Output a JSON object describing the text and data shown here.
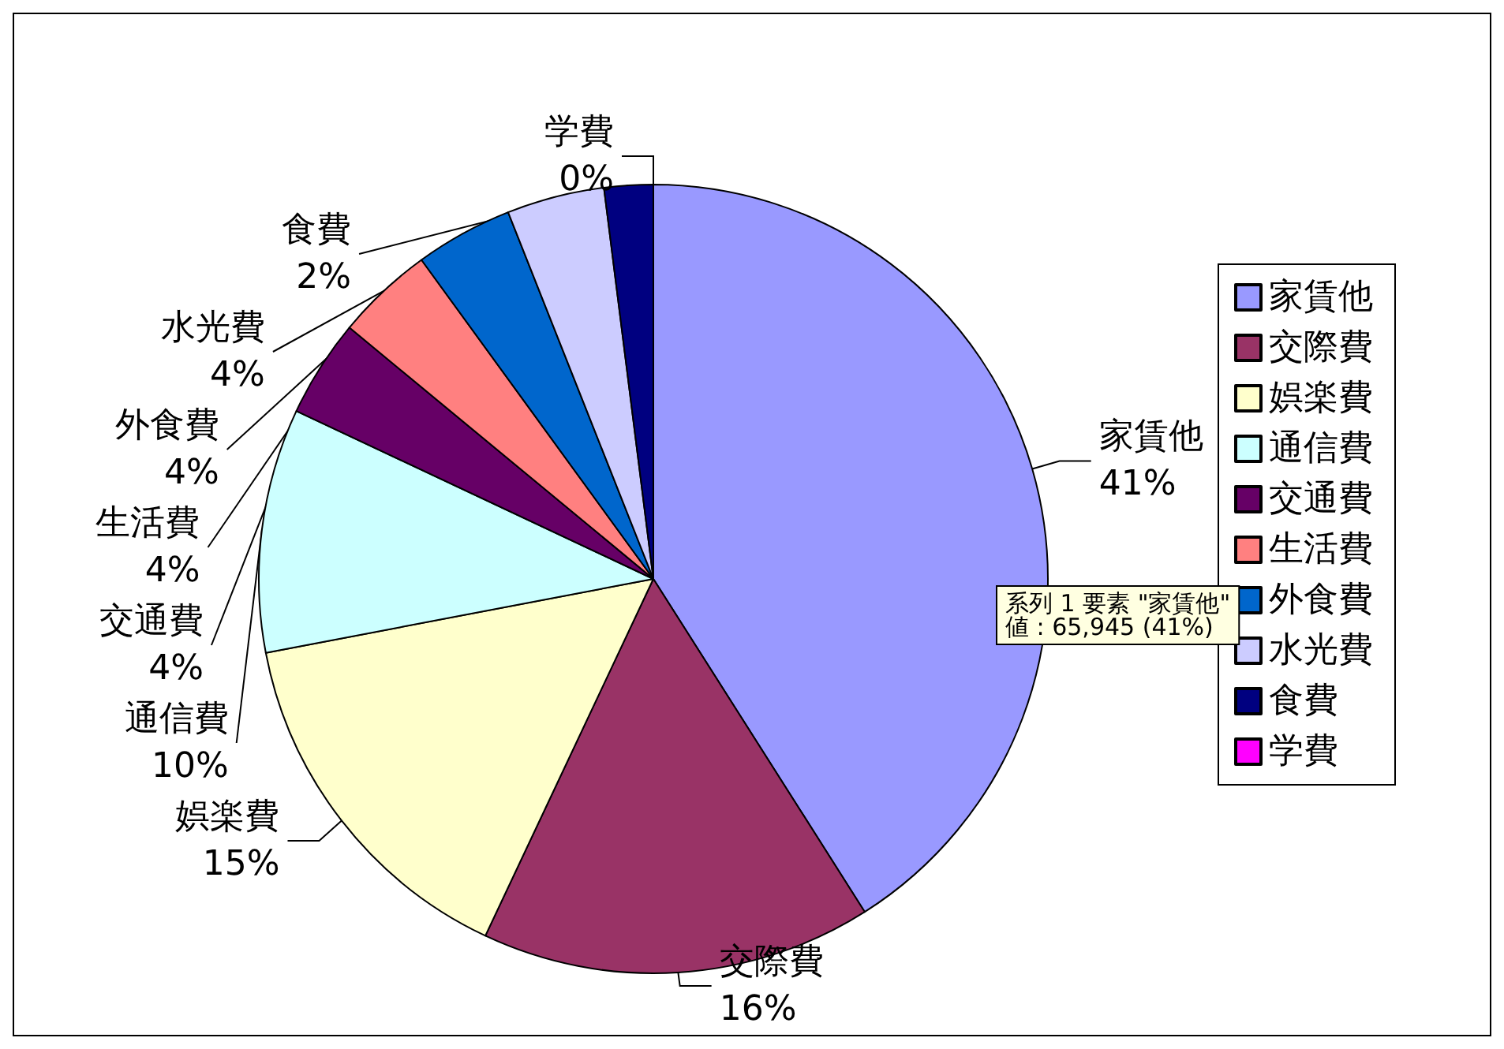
{
  "chart_data": {
    "type": "pie",
    "categories": [
      "家賃他",
      "交際費",
      "娯楽費",
      "通信費",
      "交通費",
      "生活費",
      "外食費",
      "水光費",
      "食費",
      "学費"
    ],
    "values": [
      41,
      16,
      15,
      10,
      4,
      4,
      4,
      4,
      2,
      0
    ],
    "value_labels": [
      "41%",
      "16%",
      "15%",
      "10%",
      "4%",
      "4%",
      "4%",
      "4%",
      "2%",
      "0%"
    ],
    "colors": [
      "#9999ff",
      "#993366",
      "#ffffcc",
      "#ccffff",
      "#660066",
      "#ff8080",
      "#0066cc",
      "#ccccff",
      "#000080",
      "#ff00ff"
    ],
    "legend": "right",
    "annotations": [
      "系列 1 要素 \"家賃他\"\n値 : 65,945 (41%)"
    ]
  }
}
